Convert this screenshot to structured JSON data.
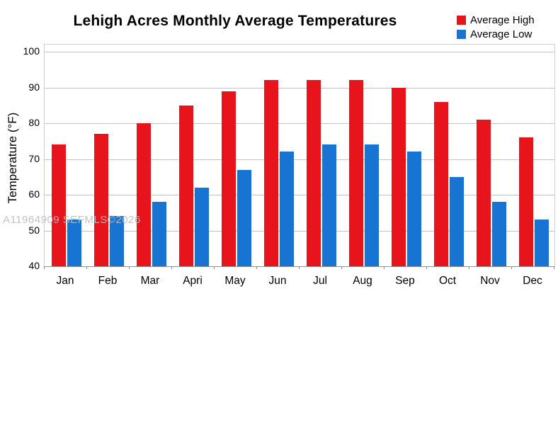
{
  "title": "Lehigh Acres Monthly Average Temperatures",
  "watermark": "A11964909 SEFMLS©2026",
  "legend": {
    "items": [
      {
        "label": "Average High",
        "color": "#e8141b"
      },
      {
        "label": "Average Low",
        "color": "#1874d2"
      }
    ]
  },
  "chart_data": {
    "type": "bar",
    "title": "Lehigh Acres Monthly Average Temperatures",
    "categories": [
      "Jan",
      "Feb",
      "Mar",
      "Apri",
      "May",
      "Jun",
      "Jul",
      "Aug",
      "Sep",
      "Oct",
      "Nov",
      "Dec"
    ],
    "series": [
      {
        "name": "Average High",
        "color": "#e8141b",
        "values": [
          74,
          77,
          80,
          85,
          89,
          92,
          92,
          92,
          90,
          86,
          81,
          76
        ]
      },
      {
        "name": "Average Low",
        "color": "#1874d2",
        "values": [
          53,
          54,
          58,
          62,
          67,
          72,
          74,
          74,
          72,
          65,
          58,
          53
        ]
      }
    ],
    "xlabel": "",
    "ylabel": "Temperature (°F)",
    "ylim": [
      40,
      100
    ],
    "yticks": [
      40,
      50,
      60,
      70,
      80,
      90,
      100
    ],
    "grid": true,
    "grid_color": "#c3c3c3",
    "axis_color": "#8f8f8f",
    "legend_position": "top-right"
  }
}
